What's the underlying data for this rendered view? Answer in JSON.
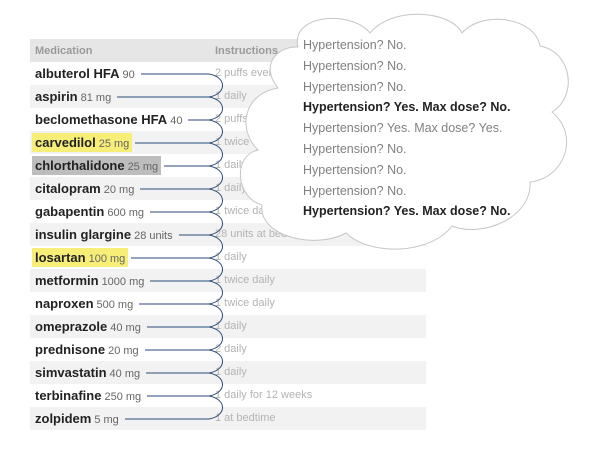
{
  "table": {
    "headers": {
      "medication": "Medication",
      "instructions": "Instructions"
    },
    "rows": [
      {
        "name": "albuterol HFA",
        "dose": "90",
        "instructions": "2 puffs every 4 hours",
        "highlight": "none"
      },
      {
        "name": "aspirin",
        "dose": "81 mg",
        "instructions": "1 daily",
        "highlight": "none"
      },
      {
        "name": "beclomethasone HFA",
        "dose": "40",
        "instructions": "2 puffs twice daily",
        "highlight": "none"
      },
      {
        "name": "carvedilol",
        "dose": "25 mg",
        "instructions": "1 twice daily",
        "highlight": "yellow"
      },
      {
        "name": "chlorthalidone",
        "dose": "25 mg",
        "instructions": "1 daily",
        "highlight": "gray"
      },
      {
        "name": "citalopram",
        "dose": "20 mg",
        "instructions": "1 daily",
        "highlight": "none"
      },
      {
        "name": "gabapentin",
        "dose": "600 mg",
        "instructions": "1 twice daily",
        "highlight": "none"
      },
      {
        "name": "insulin glargine",
        "dose": "28 units",
        "instructions": "28 units at bedtime",
        "highlight": "none"
      },
      {
        "name": "losartan",
        "dose": "100 mg",
        "instructions": "1 daily",
        "highlight": "yellow"
      },
      {
        "name": "metformin",
        "dose": "1000 mg",
        "instructions": "1 twice daily",
        "highlight": "none"
      },
      {
        "name": "naproxen",
        "dose": "500 mg",
        "instructions": "1 twice daily",
        "highlight": "none"
      },
      {
        "name": "omeprazole",
        "dose": "40 mg",
        "instructions": "1 daily",
        "highlight": "none"
      },
      {
        "name": "prednisone",
        "dose": "20 mg",
        "instructions": "2 daily",
        "highlight": "none"
      },
      {
        "name": "simvastatin",
        "dose": "40 mg",
        "instructions": "1 daily",
        "highlight": "none"
      },
      {
        "name": "terbinafine",
        "dose": "250 mg",
        "instructions": "1 daily for 12 weeks",
        "highlight": "none"
      },
      {
        "name": "zolpidem",
        "dose": "5 mg",
        "instructions": "1 at bedtime",
        "highlight": "none"
      }
    ]
  },
  "cloud": {
    "lines": [
      {
        "text": "Hypertension? No.",
        "strong": false
      },
      {
        "text": "Hypertension? No.",
        "strong": false
      },
      {
        "text": "Hypertension? No.",
        "strong": false
      },
      {
        "text": "Hypertension? Yes. Max dose? No.",
        "strong": true
      },
      {
        "text": "Hypertension? Yes. Max dose? Yes.",
        "strong": false
      },
      {
        "text": "Hypertension? No.",
        "strong": false
      },
      {
        "text": "Hypertension? No.",
        "strong": false
      },
      {
        "text": "Hypertension? No.",
        "strong": false
      },
      {
        "text": "Hypertension? Yes. Max dose? No.",
        "strong": true
      }
    ]
  },
  "colors": {
    "highlight_yellow": "#f7ee78",
    "highlight_gray": "#bdbdbd",
    "connector_line": "#2b4a78"
  }
}
